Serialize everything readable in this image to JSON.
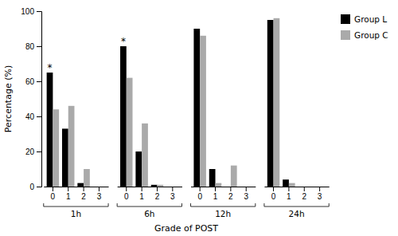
{
  "chart_data": {
    "type": "bar",
    "title": "",
    "xlabel": "Grade of POST",
    "ylabel": "Percentage (%)",
    "groups": [
      "1h",
      "6h",
      "12h",
      "24h"
    ],
    "categories": [
      "0",
      "1",
      "2",
      "3",
      "0",
      "1",
      "2",
      "3",
      "0",
      "1",
      "2",
      "3",
      "0",
      "1",
      "2",
      "3"
    ],
    "series": [
      {
        "name": "Group L",
        "color": "#000000",
        "values": [
          65,
          33,
          2,
          0,
          80,
          20,
          1,
          0,
          90,
          10,
          0,
          0,
          95,
          4,
          0,
          0
        ]
      },
      {
        "name": "Group C",
        "color": "#aaaaaa",
        "values": [
          44,
          46,
          10,
          0,
          62,
          36,
          1,
          0,
          86,
          2,
          12,
          0,
          96,
          2,
          0,
          0
        ]
      }
    ],
    "annotations": [
      {
        "text": "*",
        "series": 0,
        "index": 0
      },
      {
        "text": "*",
        "series": 0,
        "index": 4
      }
    ],
    "ylim": [
      0,
      100
    ],
    "yticks": [
      0,
      20,
      40,
      60,
      80,
      100
    ],
    "grid": false,
    "legend": "right"
  }
}
